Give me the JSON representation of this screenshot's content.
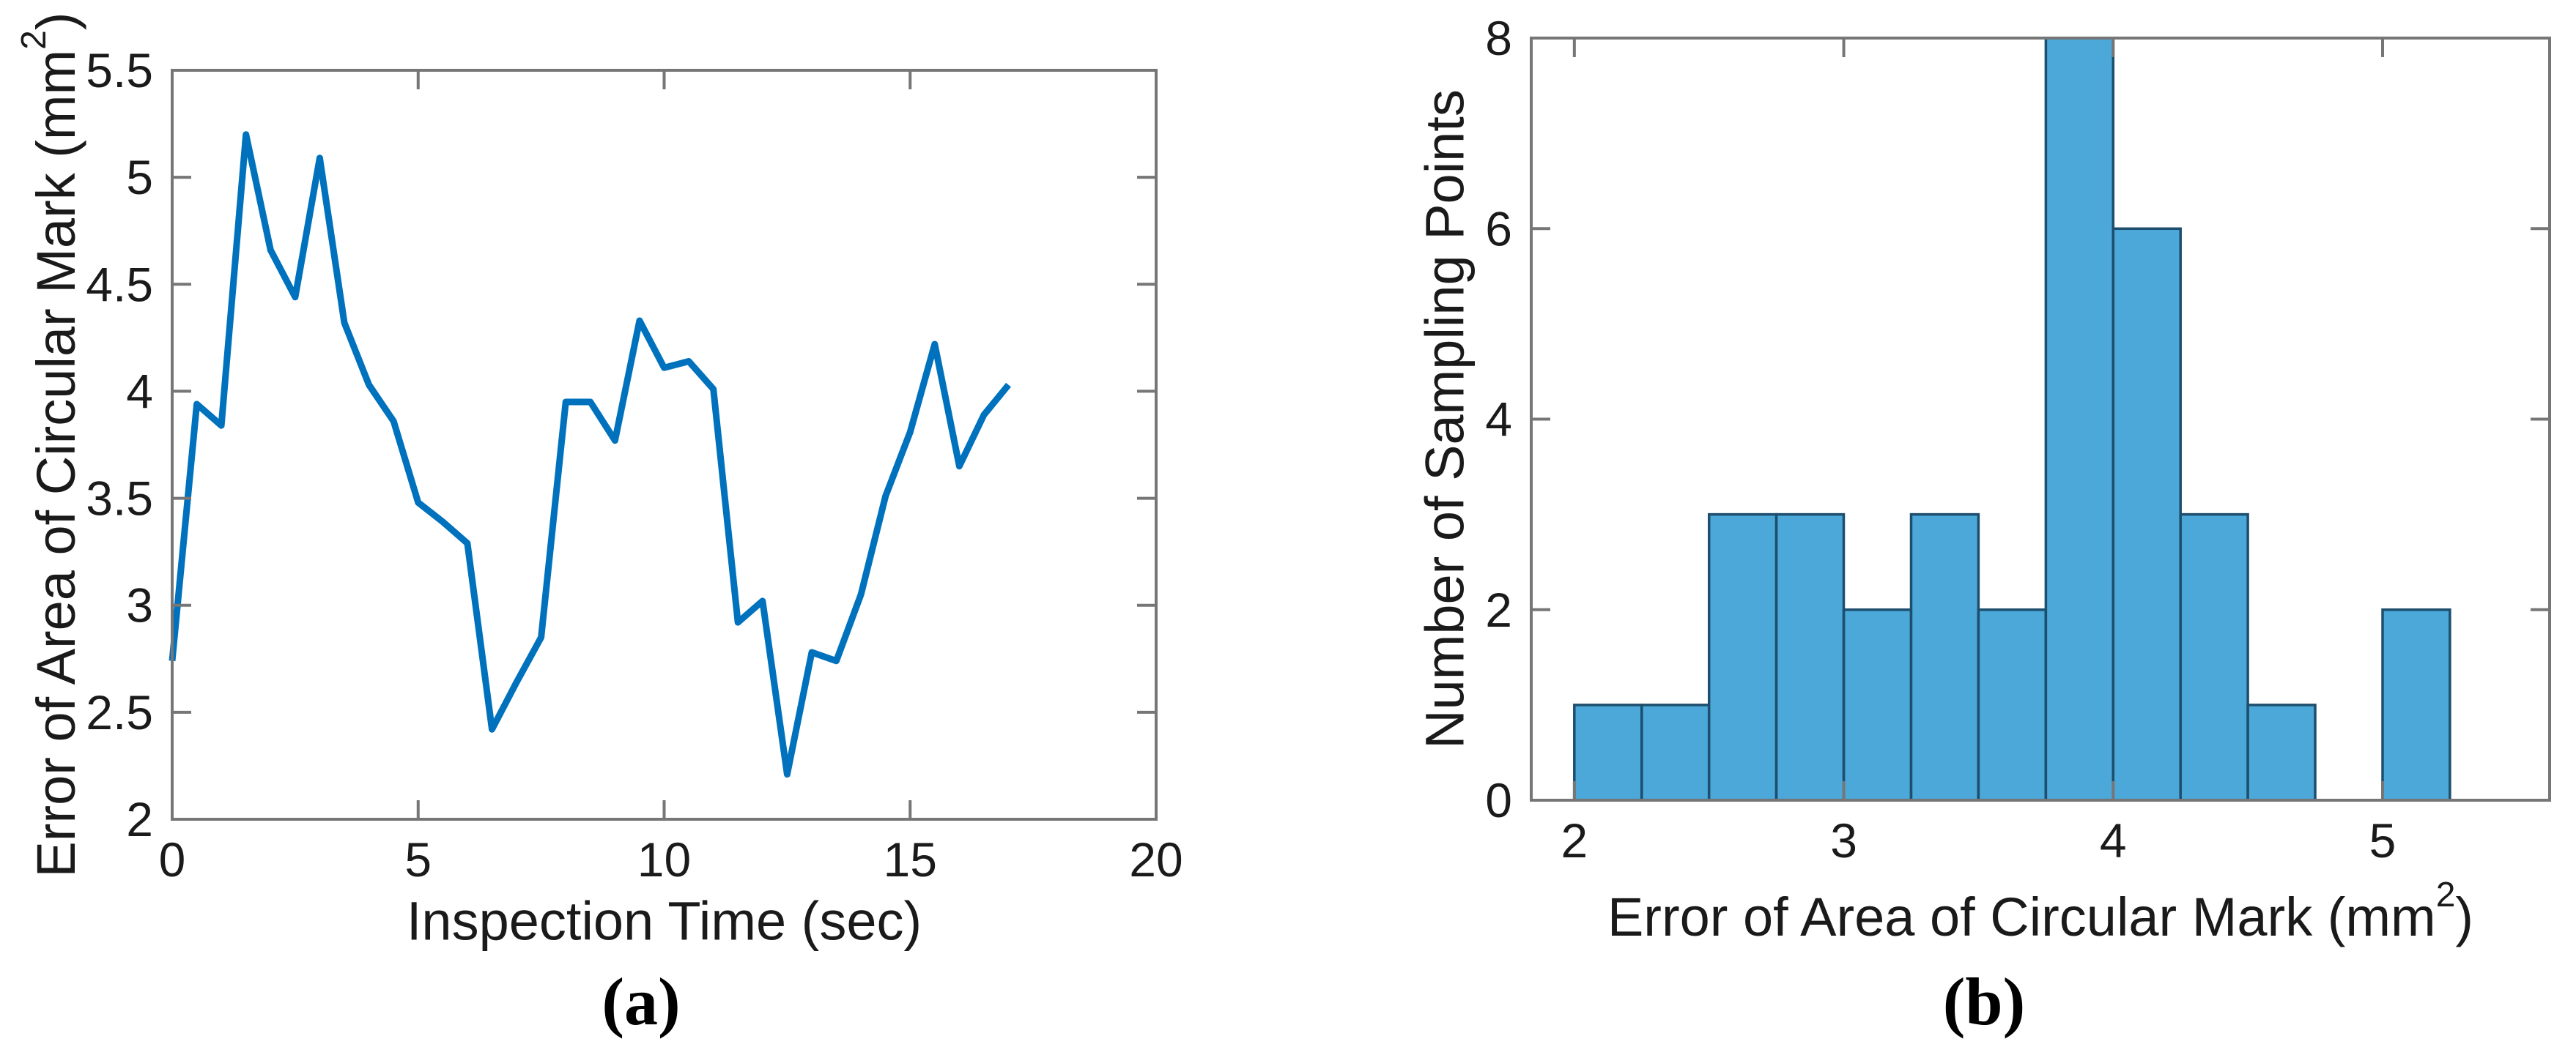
{
  "colors": {
    "line": "#0072BD",
    "bar_fill": "#4BA8D8",
    "bar_edge": "#1D4E6E",
    "axis": "#767676",
    "text": "#1a1a1a"
  },
  "chart_data": [
    {
      "type": "line",
      "panel": "a",
      "caption": "(a)",
      "title": "",
      "xlabel": "Inspection Time (sec)",
      "ylabel": {
        "text": "Error of Area of Circular Mark (mm",
        "sup": "2",
        "end": ")"
      },
      "xlim": [
        0,
        20
      ],
      "ylim": [
        2,
        5.5
      ],
      "xticks": [
        0,
        5,
        10,
        15,
        20
      ],
      "yticks": [
        2,
        2.5,
        3,
        3.5,
        4,
        4.5,
        5,
        5.5
      ],
      "grid": false,
      "legend": null,
      "x": [
        0,
        0.5,
        1,
        1.5,
        2,
        2.5,
        3,
        3.5,
        4,
        4.5,
        5,
        5.5,
        6,
        6.5,
        7,
        7.5,
        8,
        8.5,
        9,
        9.5,
        10,
        10.5,
        11,
        11.5,
        12,
        12.5,
        13,
        13.5,
        14,
        14.5,
        15,
        15.5,
        16,
        16.5,
        17
      ],
      "y": [
        2.74,
        3.94,
        3.84,
        5.2,
        4.66,
        4.44,
        5.09,
        4.32,
        4.03,
        3.86,
        3.48,
        3.39,
        3.29,
        2.42,
        2.64,
        2.85,
        3.95,
        3.95,
        3.77,
        4.33,
        4.11,
        4.14,
        4.01,
        2.92,
        3.02,
        2.21,
        2.78,
        2.74,
        3.05,
        3.51,
        3.81,
        4.22,
        3.65,
        3.89,
        4.03
      ],
      "line_color": "#0072BD"
    },
    {
      "type": "bar",
      "panel": "b",
      "caption": "(b)",
      "title": "",
      "xlabel": {
        "text": "Error of Area of Circular Mark (mm",
        "sup": "2",
        "end": ")"
      },
      "ylabel": "Number of Sampling Points",
      "xlim": [
        1.84,
        5.62
      ],
      "ylim": [
        0,
        8
      ],
      "xticks": [
        2,
        3,
        4,
        5
      ],
      "yticks": [
        0,
        2,
        4,
        6,
        8
      ],
      "grid": false,
      "legend": null,
      "bin_edges": [
        2,
        2.25,
        2.5,
        2.75,
        3,
        3.25,
        3.5,
        3.75,
        4,
        4.25,
        4.5,
        4.75,
        5,
        5.25
      ],
      "counts": [
        1,
        1,
        3,
        3,
        2,
        3,
        2,
        8,
        6,
        3,
        1,
        0,
        2
      ],
      "bar_color": "#4BA8D8",
      "bar_edge_color": "#1D4E6E"
    }
  ]
}
